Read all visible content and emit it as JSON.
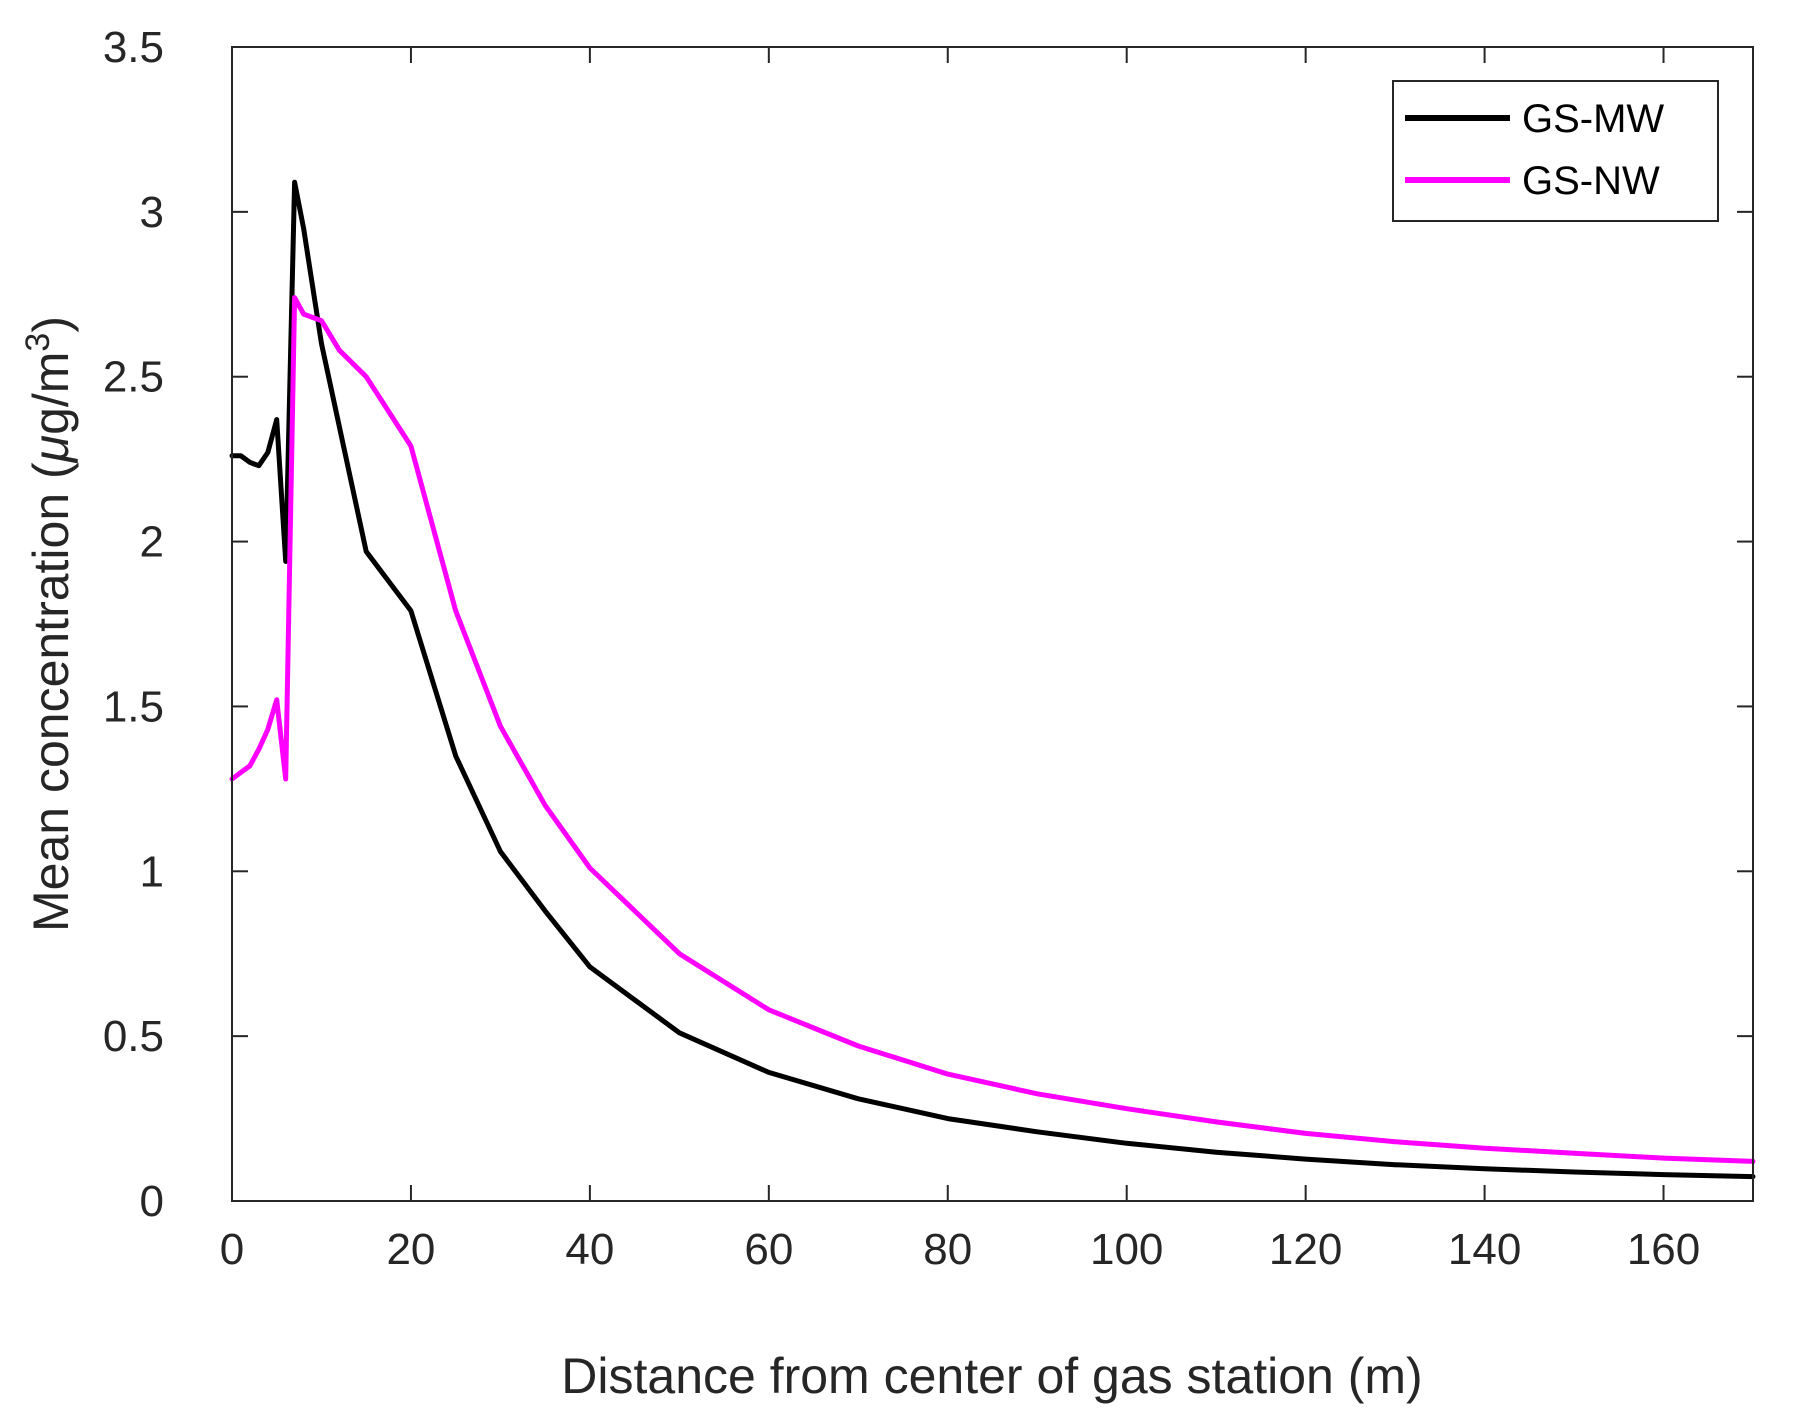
{
  "chart_data": {
    "type": "line",
    "xlabel": "Distance from center of gas station  (m)",
    "ylabel_prefix": "Mean concentration  (",
    "ylabel_mu": "μ",
    "ylabel_unit": "g/m",
    "ylabel_sup": "3",
    "ylabel_suffix": ")",
    "xlim": [
      0,
      170
    ],
    "ylim": [
      0,
      3.5
    ],
    "xticks": [
      "0",
      "20",
      "40",
      "60",
      "80",
      "100",
      "120",
      "140",
      "160"
    ],
    "yticks": [
      "0",
      "0.5",
      "1",
      "1.5",
      "2",
      "2.5",
      "3",
      "3.5"
    ],
    "grid": false,
    "legend_position": "top-right",
    "series": [
      {
        "name": "GS-MW",
        "color": "#000000",
        "x": [
          0,
          1,
          2,
          3,
          4,
          5,
          6,
          7,
          8,
          10,
          15,
          20,
          25,
          30,
          35,
          40,
          50,
          60,
          70,
          80,
          90,
          100,
          110,
          120,
          130,
          140,
          150,
          160,
          170
        ],
        "y": [
          2.26,
          2.26,
          2.24,
          2.23,
          2.27,
          2.37,
          1.94,
          3.09,
          2.95,
          2.6,
          1.97,
          1.79,
          1.35,
          1.06,
          0.88,
          0.71,
          0.51,
          0.39,
          0.31,
          0.25,
          0.21,
          0.175,
          0.148,
          0.127,
          0.11,
          0.098,
          0.088,
          0.08,
          0.074
        ]
      },
      {
        "name": "GS-NW",
        "color": "#ff00ff",
        "x": [
          0,
          1,
          2,
          3,
          4,
          5,
          6,
          7,
          8,
          10,
          12,
          15,
          20,
          25,
          30,
          35,
          40,
          50,
          60,
          70,
          80,
          90,
          100,
          110,
          120,
          130,
          140,
          150,
          160,
          170
        ],
        "y": [
          1.28,
          1.3,
          1.32,
          1.37,
          1.43,
          1.52,
          1.28,
          2.74,
          2.69,
          2.67,
          2.58,
          2.5,
          2.29,
          1.79,
          1.44,
          1.2,
          1.01,
          0.75,
          0.58,
          0.47,
          0.385,
          0.325,
          0.28,
          0.24,
          0.205,
          0.18,
          0.16,
          0.145,
          0.13,
          0.12
        ]
      }
    ]
  }
}
